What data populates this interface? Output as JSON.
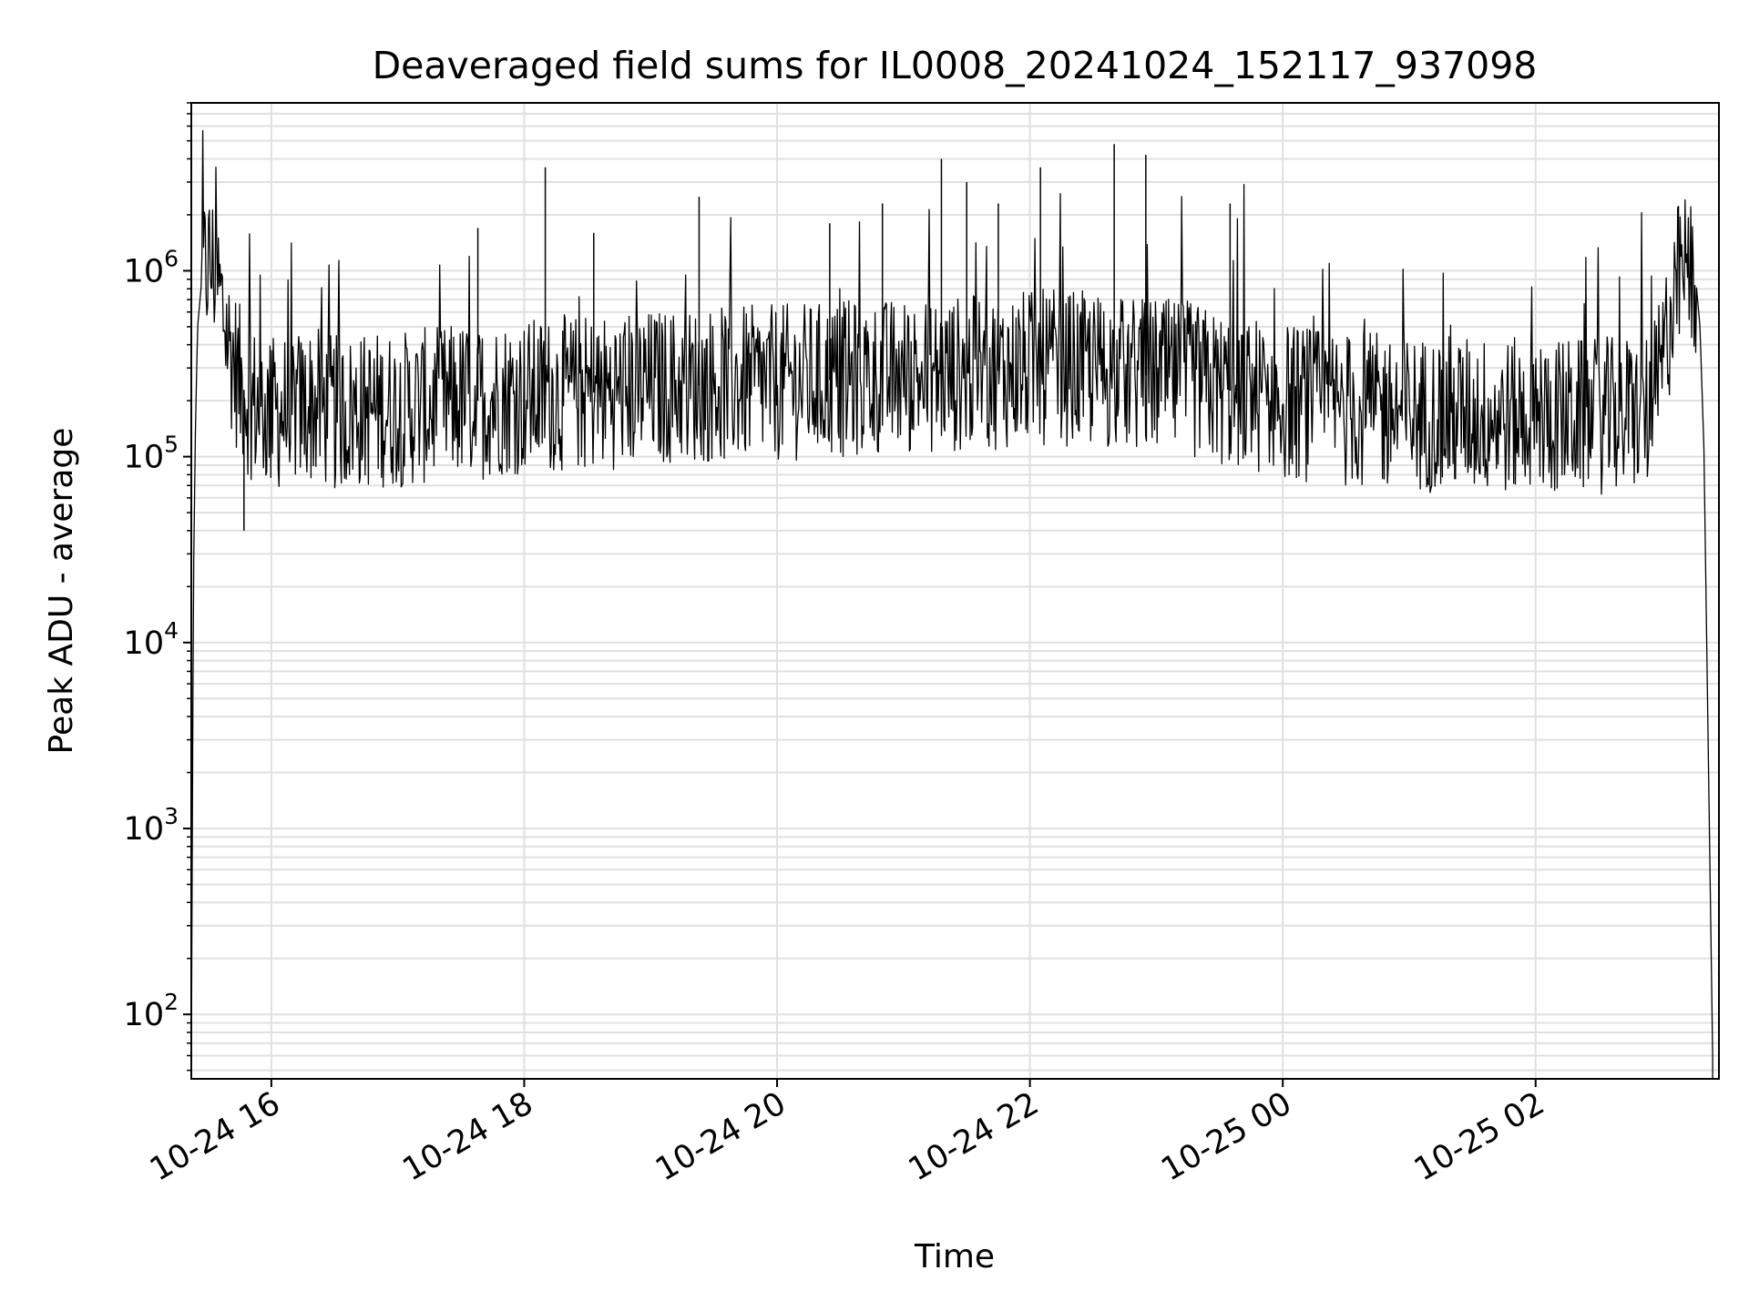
{
  "chart_data": {
    "type": "line",
    "title": "Deaveraged field sums for IL0008_20241024_152117_937098",
    "xlabel": "Time",
    "ylabel": "Peak ADU - average",
    "yscale": "log",
    "ylim": [
      45,
      8000000
    ],
    "xlim": [
      "2024-10-24 15:22",
      "2024-10-25 03:27"
    ],
    "grid": true,
    "x_ticks": [
      {
        "time": "2024-10-24 16:00",
        "label": "10-24 16"
      },
      {
        "time": "2024-10-24 18:00",
        "label": "10-24 18"
      },
      {
        "time": "2024-10-24 20:00",
        "label": "10-24 20"
      },
      {
        "time": "2024-10-24 22:00",
        "label": "10-24 22"
      },
      {
        "time": "2024-10-25 00:00",
        "label": "10-25 00"
      },
      {
        "time": "2024-10-25 02:00",
        "label": "10-25 02"
      }
    ],
    "y_ticks": [
      {
        "value": 100,
        "base": "10",
        "exp": "2"
      },
      {
        "value": 1000,
        "base": "10",
        "exp": "3"
      },
      {
        "value": 10000,
        "base": "10",
        "exp": "4"
      },
      {
        "value": 100000,
        "base": "10",
        "exp": "5"
      },
      {
        "value": 1000000,
        "base": "10",
        "exp": "6"
      }
    ],
    "line_color": "#000000",
    "grid_color": "#e0e0e0",
    "series": [
      {
        "x": [
          "2024-10-24 15:22",
          "2024-10-24 15:23",
          "2024-10-24 15:24",
          "2024-10-24 15:25",
          "2024-10-24 15:27",
          "2024-10-24 15:30",
          "2024-10-24 15:33",
          "2024-10-24 15:36",
          "2024-10-24 15:40",
          "2024-10-24 15:45",
          "2024-10-24 15:50",
          "2024-10-24 15:55",
          "2024-10-24 16:00",
          "2024-10-24 16:10",
          "2024-10-24 16:20",
          "2024-10-24 16:30",
          "2024-10-24 16:40",
          "2024-10-24 16:50",
          "2024-10-24 17:00",
          "2024-10-24 17:10",
          "2024-10-24 17:20",
          "2024-10-24 17:30",
          "2024-10-24 17:40",
          "2024-10-24 17:50",
          "2024-10-24 18:00",
          "2024-10-24 18:10",
          "2024-10-24 18:20",
          "2024-10-24 18:30",
          "2024-10-24 18:40",
          "2024-10-24 18:50",
          "2024-10-24 19:00",
          "2024-10-24 19:15",
          "2024-10-24 19:30",
          "2024-10-24 19:45",
          "2024-10-24 20:00",
          "2024-10-24 20:15",
          "2024-10-24 20:30",
          "2024-10-24 20:45",
          "2024-10-24 21:00",
          "2024-10-24 21:15",
          "2024-10-24 21:30",
          "2024-10-24 21:45",
          "2024-10-24 22:00",
          "2024-10-24 22:15",
          "2024-10-24 22:30",
          "2024-10-24 22:45",
          "2024-10-24 23:00",
          "2024-10-24 23:15",
          "2024-10-24 23:30",
          "2024-10-24 23:45",
          "2024-10-25 00:00",
          "2024-10-25 00:15",
          "2024-10-25 00:30",
          "2024-10-25 00:45",
          "2024-10-25 01:00",
          "2024-10-25 01:15",
          "2024-10-25 01:30",
          "2024-10-25 01:45",
          "2024-10-25 02:00",
          "2024-10-25 02:15",
          "2024-10-25 02:30",
          "2024-10-25 02:45",
          "2024-10-25 02:55",
          "2024-10-25 03:00",
          "2024-10-25 03:05",
          "2024-10-25 03:09",
          "2024-10-25 03:13",
          "2024-10-25 03:16",
          "2024-10-25 03:18",
          "2024-10-25 03:20"
        ],
        "y": [
          50,
          20000,
          150000,
          500000,
          900000,
          1100000,
          1000000,
          700000,
          400000,
          250000,
          200000,
          180000,
          170000,
          180000,
          190000,
          170000,
          175000,
          180000,
          180000,
          185000,
          190000,
          200000,
          200000,
          210000,
          210000,
          215000,
          220000,
          220000,
          225000,
          230000,
          235000,
          240000,
          245000,
          245000,
          250000,
          255000,
          260000,
          265000,
          270000,
          275000,
          280000,
          290000,
          300000,
          300000,
          290000,
          280000,
          270000,
          260000,
          230000,
          220000,
          200000,
          190000,
          180000,
          175000,
          170000,
          170000,
          170000,
          165000,
          165000,
          165000,
          165000,
          170000,
          180000,
          300000,
          700000,
          1000000,
          1000000,
          900000,
          500000,
          100000
        ]
      }
    ],
    "spikes": [
      {
        "x": "2024-10-24 15:47",
        "y": 40000
      },
      {
        "x": "2024-10-24 17:38",
        "y": 1700000
      },
      {
        "x": "2024-10-24 18:10",
        "y": 3600000
      },
      {
        "x": "2024-10-24 18:33",
        "y": 1600000
      },
      {
        "x": "2024-10-24 19:23",
        "y": 2500000
      },
      {
        "x": "2024-10-24 20:25",
        "y": 1800000
      },
      {
        "x": "2024-10-24 20:50",
        "y": 2300000
      },
      {
        "x": "2024-10-24 21:18",
        "y": 4000000
      },
      {
        "x": "2024-10-24 21:30",
        "y": 3000000
      },
      {
        "x": "2024-10-24 21:45",
        "y": 2300000
      },
      {
        "x": "2024-10-24 22:05",
        "y": 3600000
      },
      {
        "x": "2024-10-24 22:40",
        "y": 4800000
      },
      {
        "x": "2024-10-24 22:55",
        "y": 4200000
      },
      {
        "x": "2024-10-24 23:35",
        "y": 2300000
      }
    ]
  }
}
